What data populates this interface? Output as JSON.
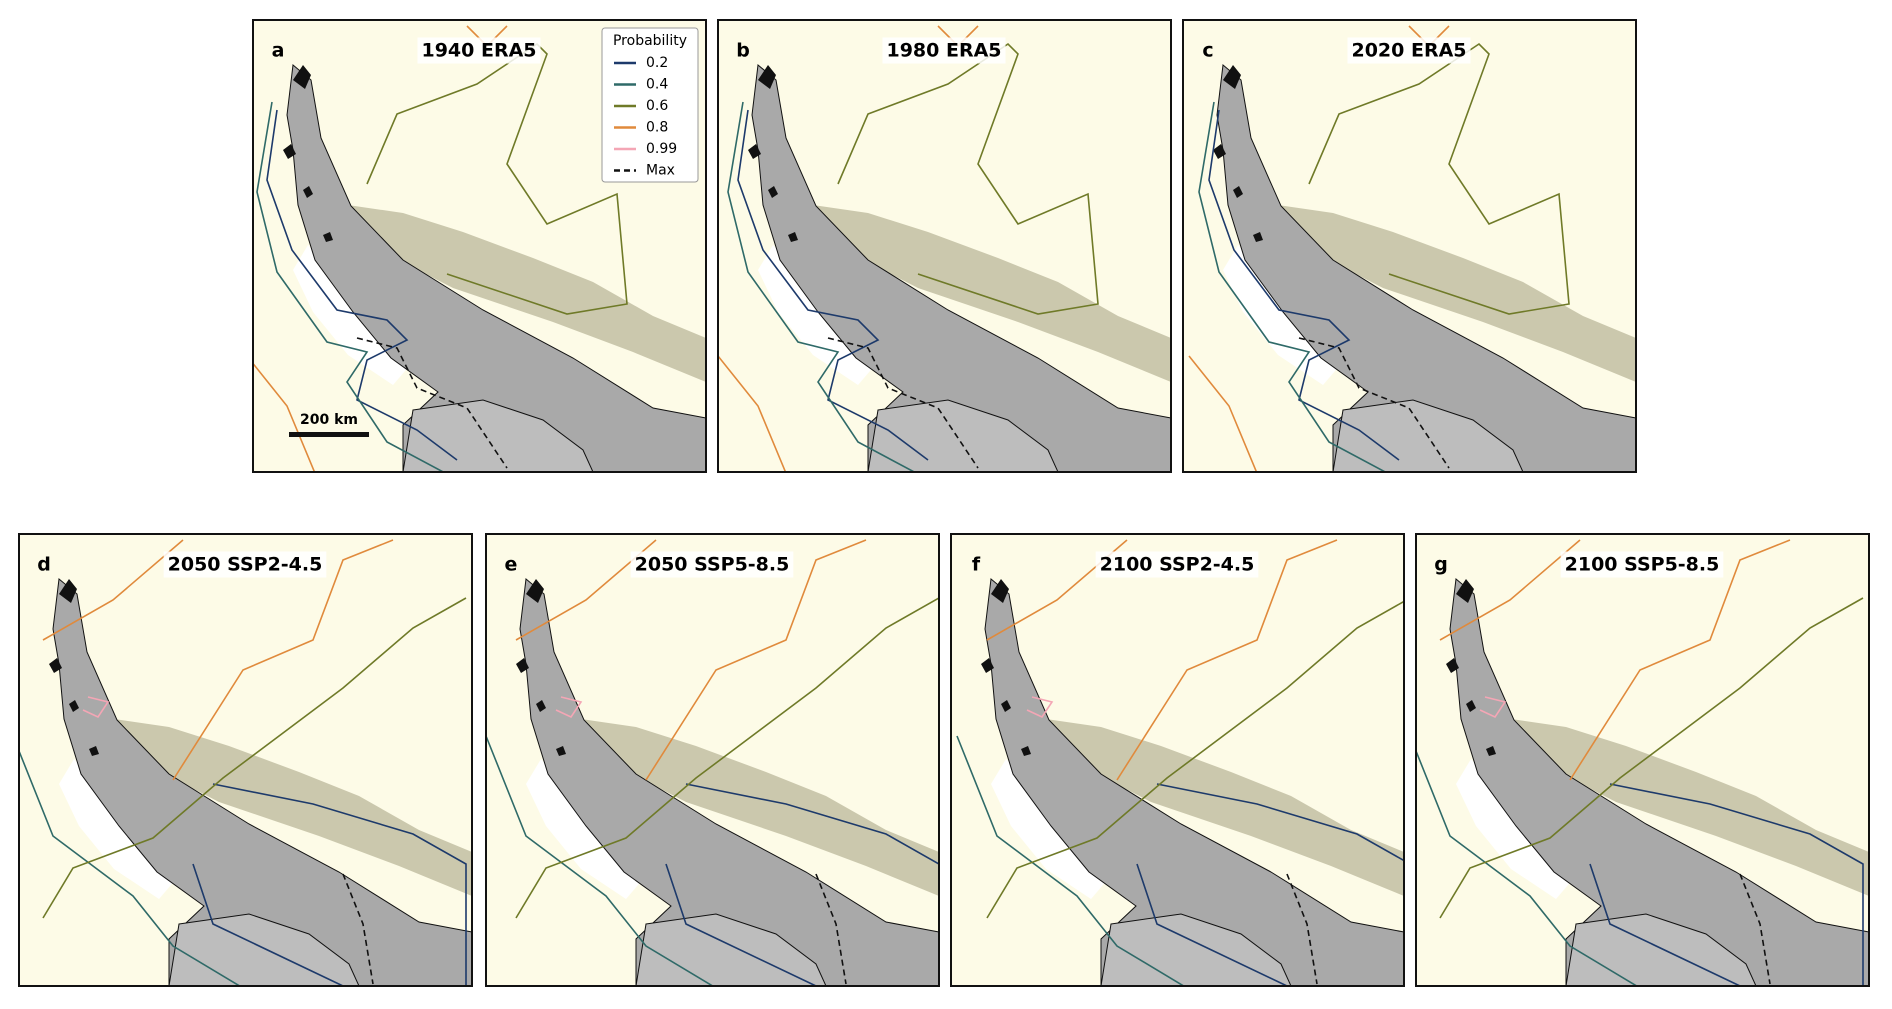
{
  "panels": [
    {
      "letter": "a",
      "title": "1940 ERA5"
    },
    {
      "letter": "b",
      "title": "1980 ERA5"
    },
    {
      "letter": "c",
      "title": "2020 ERA5"
    },
    {
      "letter": "d",
      "title": "2050 SSP2-4.5"
    },
    {
      "letter": "e",
      "title": "2050 SSP5-8.5"
    },
    {
      "letter": "f",
      "title": "2100 SSP2-4.5"
    },
    {
      "letter": "g",
      "title": "2100 SSP5-8.5"
    }
  ],
  "legend": {
    "title": "Probability",
    "items": [
      "0.2",
      "0.4",
      "0.6",
      "0.8",
      "0.99",
      "Max"
    ]
  },
  "scale_bar": "200 km"
}
